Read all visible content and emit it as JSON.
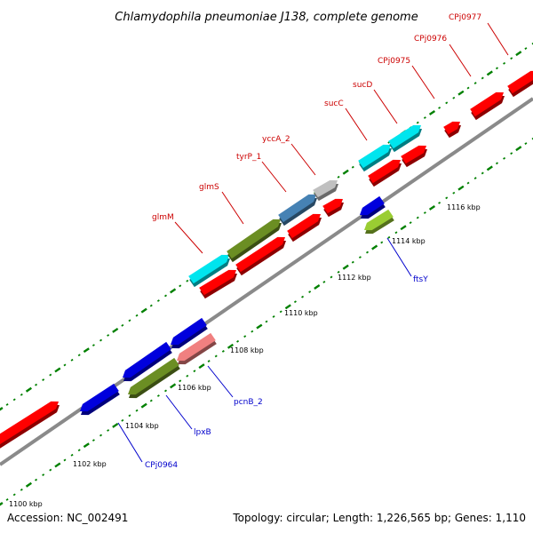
{
  "title": "Chlamydophila pneumoniae J138, complete genome",
  "footer": {
    "accession": "Accession: NC_002491",
    "stats": "Topology: circular; Length: 1,226,565 bp; Genes: 1,110"
  },
  "colors": {
    "red_gene": "#ff0000",
    "blue_gene": "#0000dd",
    "olive_gene": "#6b8e23",
    "cyan_gene": "#00e5ee",
    "steelblue_gene": "#4682b4",
    "gray_gene": "#c0c0c0",
    "pink_gene": "#f08080",
    "lime_gene": "#9acd32",
    "tick": "#008000",
    "forward_label": "#cc0000",
    "reverse_label": "#0000cc"
  },
  "axis": {
    "tick_labels": [
      "1100 kbp",
      "1102 kbp",
      "1104 kbp",
      "1106 kbp",
      "1108 kbp",
      "1110 kbp",
      "1112 kbp",
      "1114 kbp",
      "1116 kbp"
    ]
  },
  "genes": [
    {
      "name": "glmM",
      "strand": "forward",
      "color": "cyan"
    },
    {
      "name": "glmS",
      "strand": "forward",
      "color": "olive"
    },
    {
      "name": "tyrP_1",
      "strand": "forward",
      "color": "steelblue"
    },
    {
      "name": "yccA_2",
      "strand": "forward",
      "color": "gray"
    },
    {
      "name": "sucC",
      "strand": "forward",
      "color": "cyan"
    },
    {
      "name": "sucD",
      "strand": "forward",
      "color": "cyan"
    },
    {
      "name": "CPj0975",
      "strand": "forward",
      "color": "red"
    },
    {
      "name": "CPj0976",
      "strand": "forward",
      "color": "red"
    },
    {
      "name": "CPj0977",
      "strand": "forward",
      "color": "red"
    },
    {
      "name": "CPj0964",
      "strand": "reverse",
      "color": "blue"
    },
    {
      "name": "lpxB",
      "strand": "reverse",
      "color": "olive"
    },
    {
      "name": "pcnB_2",
      "strand": "reverse",
      "color": "pink"
    },
    {
      "name": "ftsY",
      "strand": "reverse",
      "color": "lime"
    }
  ]
}
